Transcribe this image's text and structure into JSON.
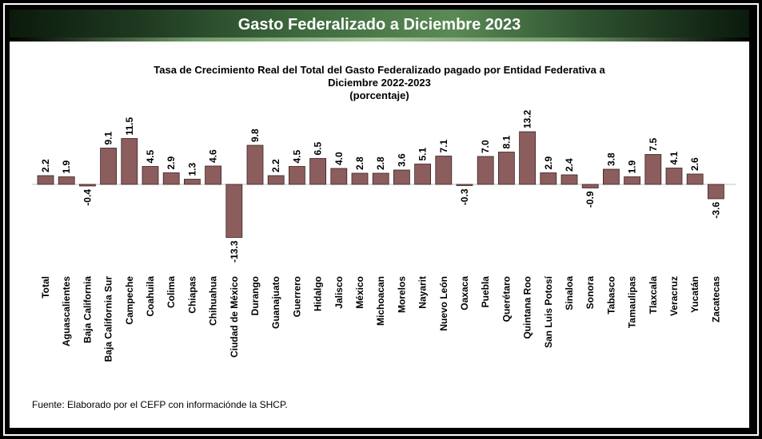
{
  "banner": {
    "title": "Gasto Federalizado a Diciembre 2023"
  },
  "chart_data": {
    "type": "bar",
    "title_line1": "Tasa de Crecimiento Real del Total del Gasto Federalizado pagado por Entidad Federativa a",
    "title_line2": "Diciembre 2022-2023",
    "subtitle": "(porcentaje)",
    "categories": [
      "Total",
      "Aguascalientes",
      "Baja California",
      "Baja California Sur",
      "Campeche",
      "Coahuila",
      "Colima",
      "Chiapas",
      "Chihuahua",
      "Ciudad de México",
      "Durango",
      "Guanajuato",
      "Guerrero",
      "Hidalgo",
      "Jalisco",
      "México",
      "Michoacan",
      "Morelos",
      "Nayarit",
      "Nuevo León",
      "Oaxaca",
      "Puebla",
      "Querétaro",
      "Quintana Roo",
      "San Luis Potosí",
      "Sinaloa",
      "Sonora",
      "Tabasco",
      "Tamaulipas",
      "Tlaxcala",
      "Veracruz",
      "Yucatán",
      "Zacatecas"
    ],
    "values": [
      2.2,
      1.9,
      -0.4,
      9.1,
      11.5,
      4.5,
      2.9,
      1.3,
      4.6,
      -13.3,
      9.8,
      2.2,
      4.5,
      6.5,
      4.0,
      2.8,
      2.8,
      3.6,
      5.1,
      7.1,
      -0.3,
      7.0,
      8.1,
      13.2,
      2.9,
      2.4,
      -0.9,
      3.8,
      1.9,
      7.5,
      4.1,
      2.6,
      -3.6
    ],
    "labels": [
      "2.2",
      "1.9",
      "-0.4",
      "9.1",
      "11.5",
      "4.5",
      "2.9",
      "1.3",
      "4.6",
      "-13.3",
      "9.8",
      "2.2",
      "4.5",
      "6.5",
      "4.0",
      "2.8",
      "2.8",
      "3.6",
      "5.1",
      "7.1",
      "-0.3",
      "7.0",
      "8.1",
      "13.2",
      "2.9",
      "2.4",
      "-0.9",
      "3.8",
      "1.9",
      "7.5",
      "4.1",
      "2.6",
      "-3.6"
    ],
    "bar_color": "#8c5d5d",
    "xlabel": "",
    "ylabel": "",
    "grid": false
  },
  "source": "Fuente: Elaborado por el CEFP con informaciónde la SHCP."
}
